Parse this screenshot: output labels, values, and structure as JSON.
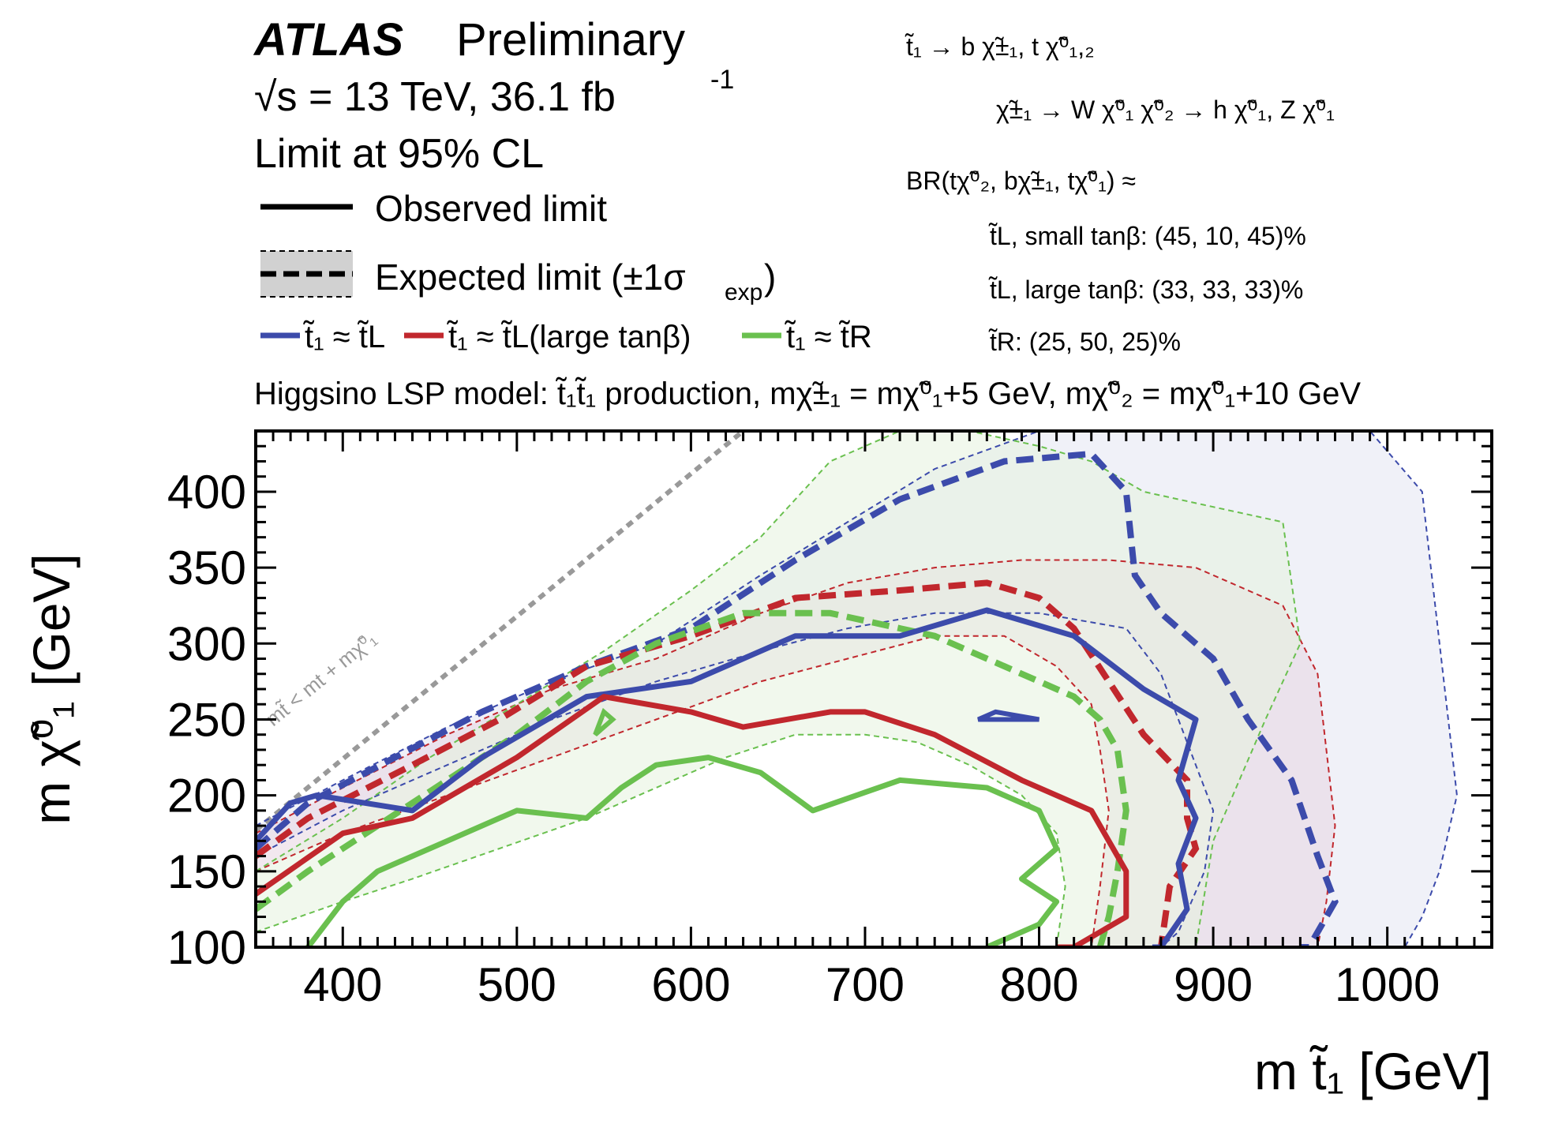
{
  "header": {
    "experiment": "ATLAS",
    "status": "Preliminary",
    "sqrt_s_prefix": "√s = 13 TeV, 36.1 fb",
    "sqrt_s_sup": "-1",
    "cl": "Limit at 95% CL",
    "observed_label": "Observed limit",
    "expected_label": "Expected limit (±1σ",
    "expected_sub": "exp",
    "expected_close": ")"
  },
  "legend": {
    "blue": "t̃₁ ≈ t̃L",
    "red": "t̃₁ ≈ t̃L(large tanβ)",
    "green": "t̃₁ ≈ t̃R"
  },
  "decay": {
    "line1": "t̃₁  →  b χ̃±₁, t χ̃⁰₁,₂",
    "line2": "χ̃±₁ → W χ̃⁰₁      χ̃⁰₂ → h χ̃⁰₁, Z χ̃⁰₁",
    "br": "BR(tχ̃⁰₂, bχ̃±₁, tχ̃⁰₁) ≈",
    "br1": "t̃L, small tanβ: (45, 10, 45)%",
    "br2": "t̃L, large tanβ: (33, 33, 33)%",
    "br3": "t̃R: (25, 50, 25)%"
  },
  "model_line": "Higgsino LSP model: t̃₁t̃₁ production, mχ̃±₁ = mχ̃⁰₁+5 GeV, mχ̃⁰₂ = mχ̃⁰₁+10 GeV",
  "kinematic_label": "mt̃ < mt + mχ̃⁰₁",
  "colors": {
    "blue": "#3c4bab",
    "red": "#c1272d",
    "green": "#6ac04f",
    "kin": "#999999",
    "blue_fill": "#e3e5f2",
    "red_fill": "#e8d5e2",
    "green_fill": "#e5f2de",
    "gray_fill": "#d1d1d1"
  },
  "chart_data": {
    "type": "contour",
    "xlabel": "m t̃₁ [GeV]",
    "ylabel": "m χ̃⁰₁ [GeV]",
    "xlim": [
      350,
      1060
    ],
    "ylim": [
      100,
      440
    ],
    "xticks": [
      400,
      500,
      600,
      700,
      800,
      900,
      1000
    ],
    "yticks": [
      100,
      150,
      200,
      250,
      300,
      350,
      400
    ],
    "kinematic_line": {
      "x": [
        350,
        630
      ],
      "y": [
        177,
        440
      ]
    },
    "series": [
      {
        "name": "t̃₁ ≈ t̃L",
        "color": "blue",
        "observed": {
          "x": [
            350,
            370,
            385,
            440,
            480,
            540,
            600,
            660,
            720,
            770,
            820,
            860,
            890,
            880,
            890,
            880,
            885,
            870,
            865
          ],
          "y": [
            170,
            195,
            200,
            190,
            225,
            265,
            275,
            305,
            305,
            322,
            305,
            270,
            250,
            210,
            185,
            155,
            125,
            100,
            100
          ]
        },
        "observed_island": {
          "x": [
            765,
            800,
            775,
            765
          ],
          "y": [
            250,
            250,
            255,
            250
          ]
        },
        "expected": {
          "x": [
            350,
            380,
            430,
            480,
            540,
            600,
            660,
            720,
            780,
            830,
            850,
            855,
            870,
            900,
            920,
            945,
            960,
            970,
            955,
            950
          ],
          "y": [
            165,
            195,
            225,
            255,
            285,
            310,
            355,
            395,
            420,
            425,
            400,
            345,
            320,
            290,
            250,
            210,
            160,
            130,
            100,
            100
          ]
        },
        "band_outer": {
          "x": [
            350,
            400,
            460,
            520,
            580,
            640,
            690,
            740,
            800,
            860,
            910,
            990,
            1020,
            1040,
            1030,
            1020,
            1010
          ],
          "y": [
            180,
            210,
            245,
            275,
            300,
            345,
            380,
            415,
            440,
            440,
            440,
            440,
            400,
            200,
            150,
            120,
            100
          ]
        },
        "band_inner": {
          "x": [
            350,
            400,
            460,
            520,
            580,
            640,
            690,
            740,
            800,
            850,
            870,
            880,
            890,
            900,
            895,
            880,
            870
          ],
          "y": [
            160,
            190,
            220,
            250,
            275,
            295,
            310,
            320,
            320,
            310,
            280,
            250,
            220,
            190,
            150,
            110,
            100
          ]
        }
      },
      {
        "name": "t̃₁ ≈ t̃L(large tanβ)",
        "color": "red",
        "observed": {
          "x": [
            350,
            400,
            440,
            500,
            550,
            600,
            630,
            680,
            700,
            740,
            790,
            830,
            850,
            850,
            820,
            810
          ],
          "y": [
            135,
            175,
            185,
            225,
            265,
            255,
            245,
            255,
            255,
            240,
            210,
            190,
            150,
            120,
            100,
            100
          ]
        },
        "expected": {
          "x": [
            350,
            380,
            440,
            490,
            540,
            600,
            660,
            720,
            770,
            800,
            820,
            840,
            860,
            885,
            885,
            890,
            875,
            870
          ],
          "y": [
            160,
            185,
            220,
            250,
            285,
            305,
            330,
            335,
            340,
            330,
            310,
            275,
            240,
            210,
            185,
            165,
            140,
            100
          ]
        },
        "band_outer": {
          "x": [
            350,
            400,
            460,
            520,
            580,
            640,
            690,
            740,
            790,
            840,
            890,
            940,
            960,
            970,
            965,
            960
          ],
          "y": [
            175,
            205,
            240,
            270,
            290,
            320,
            340,
            350,
            355,
            355,
            350,
            325,
            280,
            180,
            130,
            100
          ]
        },
        "band_inner": {
          "x": [
            350,
            400,
            460,
            520,
            580,
            640,
            690,
            740,
            780,
            810,
            830,
            835,
            840,
            835,
            830
          ],
          "y": [
            150,
            175,
            200,
            225,
            250,
            275,
            290,
            305,
            305,
            285,
            260,
            230,
            190,
            140,
            100
          ]
        }
      },
      {
        "name": "t̃₁ ≈ t̃R",
        "color": "green",
        "observed": {
          "x": [
            380,
            400,
            420,
            460,
            500,
            540,
            560,
            580,
            610,
            640,
            670,
            720,
            770,
            800,
            810,
            790,
            810,
            800,
            770
          ],
          "y": [
            100,
            130,
            150,
            170,
            190,
            185,
            205,
            220,
            225,
            215,
            190,
            210,
            205,
            190,
            165,
            145,
            130,
            115,
            100
          ]
        },
        "observed_island": {
          "x": [
            545,
            555,
            550,
            545
          ],
          "y": [
            240,
            250,
            255,
            240
          ]
        },
        "expected": {
          "x": [
            350,
            380,
            420,
            460,
            500,
            540,
            580,
            630,
            680,
            740,
            780,
            820,
            835,
            845,
            850,
            845,
            840,
            835
          ],
          "y": [
            125,
            150,
            180,
            210,
            240,
            275,
            300,
            320,
            320,
            305,
            285,
            265,
            250,
            230,
            190,
            150,
            120,
            100
          ]
        },
        "band_outer": {
          "x": [
            350,
            400,
            450,
            500,
            550,
            600,
            640,
            680,
            720,
            760,
            800,
            830,
            860,
            900,
            940,
            950,
            930,
            900,
            890
          ],
          "y": [
            150,
            185,
            225,
            260,
            295,
            335,
            370,
            420,
            440,
            440,
            430,
            420,
            400,
            390,
            380,
            300,
            250,
            170,
            100
          ]
        },
        "band_inner": {
          "x": [
            350,
            400,
            440,
            490,
            540,
            580,
            620,
            660,
            700,
            730,
            760,
            790,
            810,
            815,
            810
          ],
          "y": [
            110,
            130,
            145,
            165,
            185,
            205,
            225,
            240,
            240,
            235,
            220,
            200,
            175,
            140,
            100
          ]
        }
      }
    ]
  }
}
